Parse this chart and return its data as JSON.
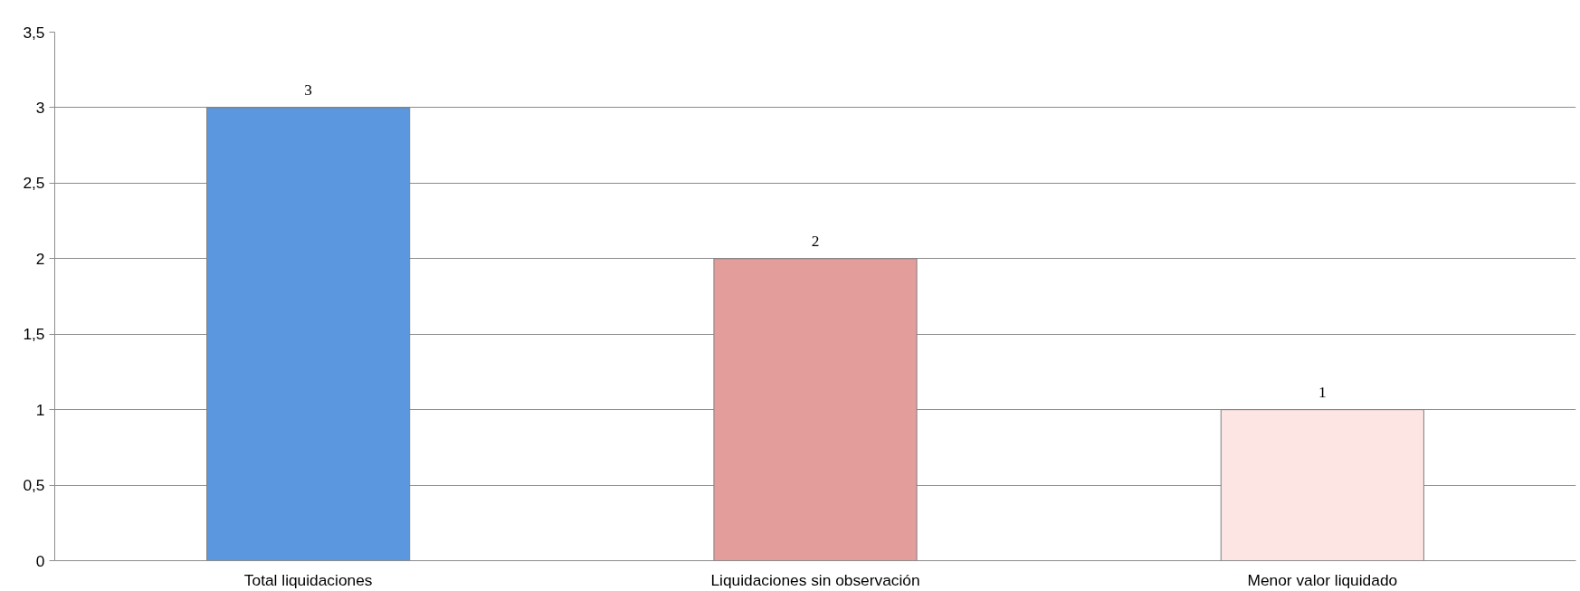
{
  "chart_data": {
    "type": "bar",
    "categories": [
      "Total liquidaciones",
      "Liquidaciones sin observación",
      "Menor valor liquidado"
    ],
    "values": [
      3,
      2,
      1
    ],
    "colors": [
      "#5b97de",
      "#e39e9c",
      "#fce5e3"
    ],
    "ylim": [
      0,
      3.5
    ],
    "yticks": [
      0,
      {
        "value": 0.5,
        "label": "0,5"
      },
      1,
      {
        "value": 1.5,
        "label": "1,5"
      },
      2,
      {
        "value": 2.5,
        "label": "2,5"
      },
      3,
      {
        "value": 3.5,
        "label": "3,5"
      }
    ],
    "grid": "y",
    "data_labels": true
  }
}
